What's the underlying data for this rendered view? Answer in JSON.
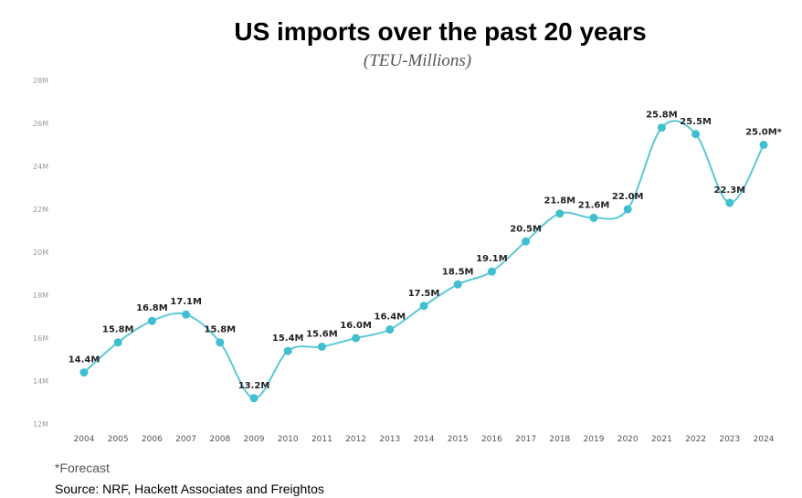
{
  "chart_data": {
    "type": "line",
    "title": "US imports over the past 20 years",
    "subtitle": "(TEU-Millions)",
    "xlabel": "",
    "ylabel": "",
    "categories": [
      "2004",
      "2005",
      "2006",
      "2007",
      "2008",
      "2009",
      "2010",
      "2011",
      "2012",
      "2013",
      "2014",
      "2015",
      "2016",
      "2017",
      "2018",
      "2019",
      "2020",
      "2021",
      "2022",
      "2023",
      "2024"
    ],
    "series": [
      {
        "values": [
          14.4,
          15.8,
          16.8,
          17.1,
          15.8,
          13.2,
          15.4,
          15.6,
          16.0,
          16.4,
          17.5,
          18.5,
          19.1,
          20.5,
          21.8,
          21.6,
          22.0,
          25.8,
          25.5,
          22.3,
          25.0
        ],
        "labels": [
          "14.4M",
          "15.8M",
          "16.8M",
          "17.1M",
          "15.8M",
          "13.2M",
          "15.4M",
          "15.6M",
          "16.0M",
          "16.4M",
          "17.5M",
          "18.5M",
          "19.1M",
          "20.5M",
          "21.8M",
          "21.6M",
          "22.0M",
          "25.8M",
          "25.5M",
          "22.3M",
          "25.0M*"
        ]
      }
    ],
    "y_ticks": [
      12,
      14,
      16,
      18,
      20,
      22,
      24,
      26,
      28
    ],
    "y_tick_labels": [
      "12M",
      "14M",
      "16M",
      "18M",
      "20M",
      "22M",
      "24M",
      "26M",
      "28M"
    ],
    "ylim": [
      12,
      28
    ],
    "grid": false,
    "legend": "none",
    "line_color": "#5cc8d6",
    "marker_color": "#3fbfcf",
    "footnotes": {
      "forecast": "*Forecast",
      "source": "Source: NRF, Hackett Associates and Freightos"
    }
  }
}
